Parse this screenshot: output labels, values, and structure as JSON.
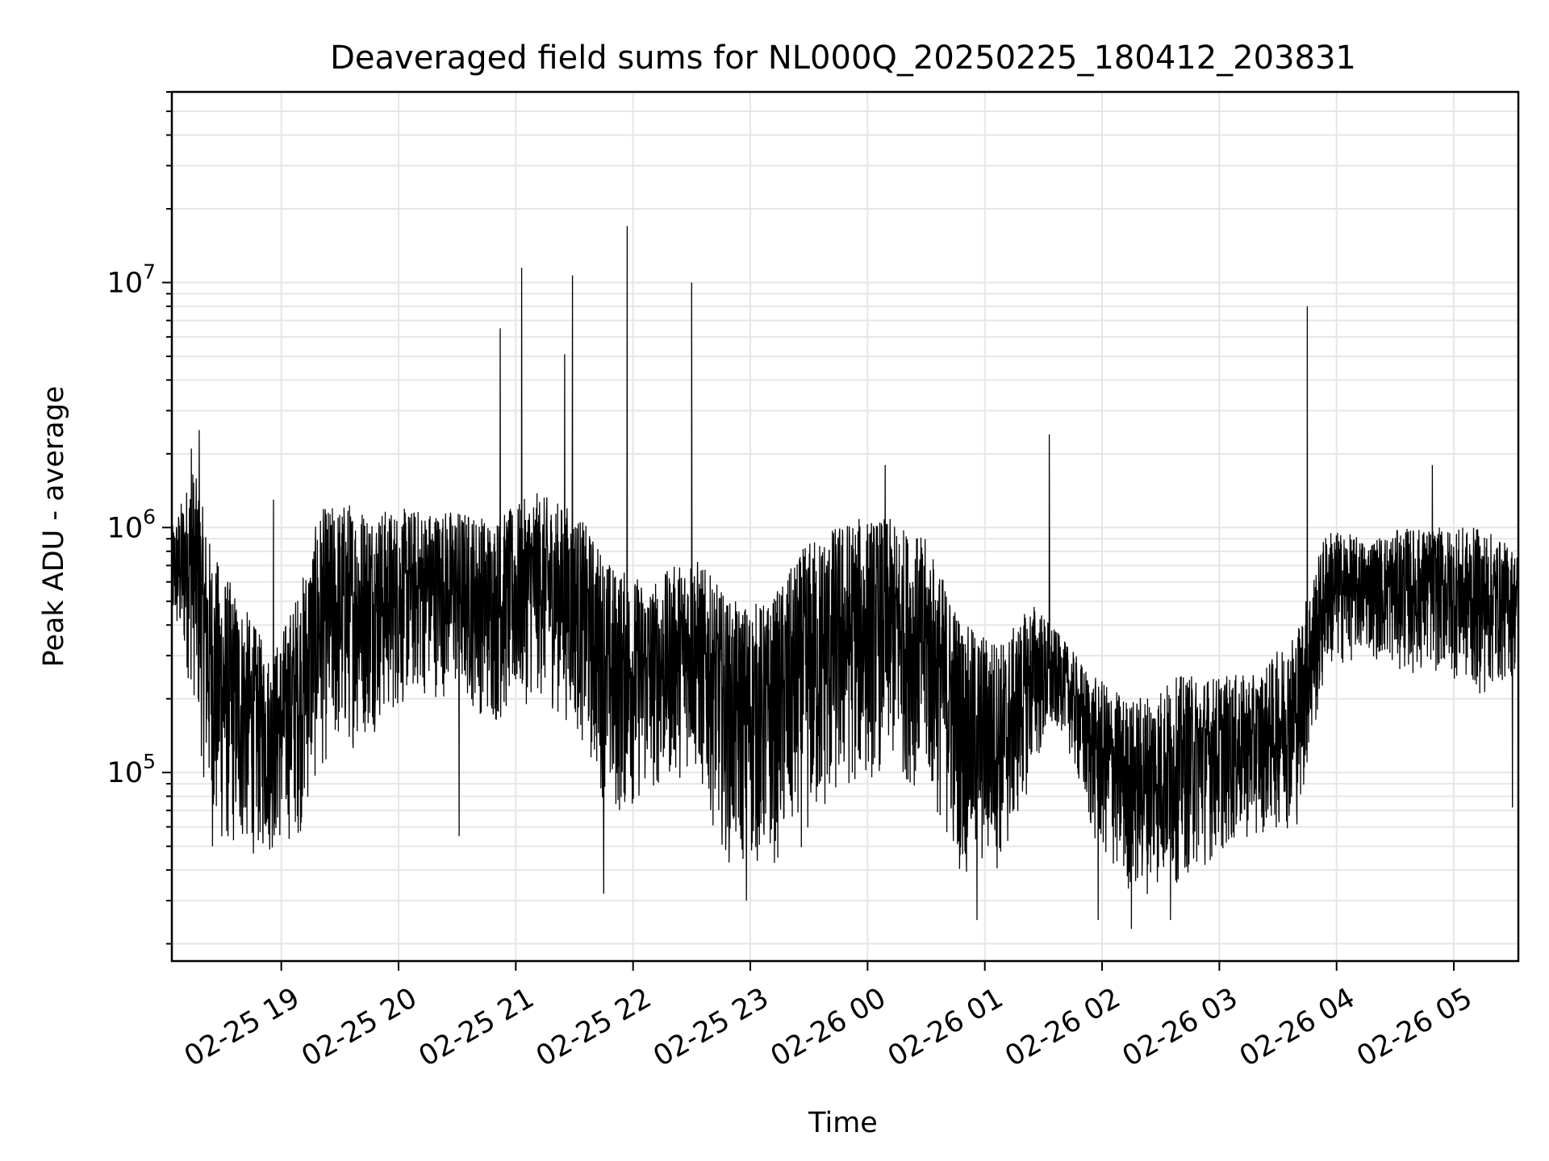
{
  "chart_data": {
    "type": "line",
    "title": "Deaveraged field sums for NL000Q_20250225_180412_203831",
    "xlabel": "Time",
    "ylabel": "Peak ADU - average",
    "yscale": "log",
    "grid": true,
    "line_color": "#000000",
    "grid_color": "#e6e6e6",
    "xlim": [
      "2025-02-25 18:04",
      "2025-02-26 05:33"
    ],
    "ylim": [
      17000,
      60000000
    ],
    "x_ticks": [
      {
        "t": "2025-02-25 19:00",
        "label": "02-25 19"
      },
      {
        "t": "2025-02-25 20:00",
        "label": "02-25 20"
      },
      {
        "t": "2025-02-25 21:00",
        "label": "02-25 21"
      },
      {
        "t": "2025-02-25 22:00",
        "label": "02-25 22"
      },
      {
        "t": "2025-02-25 23:00",
        "label": "02-25 23"
      },
      {
        "t": "2025-02-26 00:00",
        "label": "02-26 00"
      },
      {
        "t": "2025-02-26 01:00",
        "label": "02-26 01"
      },
      {
        "t": "2025-02-26 02:00",
        "label": "02-26 02"
      },
      {
        "t": "2025-02-26 03:00",
        "label": "02-26 03"
      },
      {
        "t": "2025-02-26 04:00",
        "label": "02-26 04"
      },
      {
        "t": "2025-02-26 05:00",
        "label": "02-26 05"
      }
    ],
    "y_ticks": [
      {
        "value": 100000,
        "base": "10",
        "exp": "5"
      },
      {
        "value": 1000000,
        "base": "10",
        "exp": "6"
      },
      {
        "value": 10000000,
        "base": "10",
        "exp": "7"
      }
    ],
    "envelope": [
      {
        "t": "2025-02-25 18:04",
        "low": 380000,
        "high": 1000000
      },
      {
        "t": "2025-02-25 18:15",
        "low": 200000,
        "high": 1800000
      },
      {
        "t": "2025-02-25 18:25",
        "low": 45000,
        "high": 800000
      },
      {
        "t": "2025-02-25 18:40",
        "low": 45000,
        "high": 500000
      },
      {
        "t": "2025-02-25 18:55",
        "low": 45000,
        "high": 300000
      },
      {
        "t": "2025-02-25 19:10",
        "low": 55000,
        "high": 600000
      },
      {
        "t": "2025-02-25 19:20",
        "low": 100000,
        "high": 1200000
      },
      {
        "t": "2025-02-25 19:35",
        "low": 120000,
        "high": 1300000
      },
      {
        "t": "2025-02-25 19:50",
        "low": 150000,
        "high": 1200000
      },
      {
        "t": "2025-02-25 20:10",
        "low": 200000,
        "high": 1200000
      },
      {
        "t": "2025-02-25 20:30",
        "low": 200000,
        "high": 1200000
      },
      {
        "t": "2025-02-25 20:50",
        "low": 150000,
        "high": 1100000
      },
      {
        "t": "2025-02-25 21:10",
        "low": 200000,
        "high": 1400000
      },
      {
        "t": "2025-02-25 21:30",
        "low": 150000,
        "high": 1200000
      },
      {
        "t": "2025-02-25 21:50",
        "low": 60000,
        "high": 700000
      },
      {
        "t": "2025-02-25 22:10",
        "low": 80000,
        "high": 600000
      },
      {
        "t": "2025-02-25 22:30",
        "low": 100000,
        "high": 800000
      },
      {
        "t": "2025-02-25 22:50",
        "low": 40000,
        "high": 500000
      },
      {
        "t": "2025-02-25 23:10",
        "low": 40000,
        "high": 500000
      },
      {
        "t": "2025-02-25 23:30",
        "low": 50000,
        "high": 900000
      },
      {
        "t": "2025-02-25 23:50",
        "low": 80000,
        "high": 1100000
      },
      {
        "t": "2025-02-26 00:10",
        "low": 100000,
        "high": 1100000
      },
      {
        "t": "2025-02-26 00:30",
        "low": 80000,
        "high": 900000
      },
      {
        "t": "2025-02-26 00:50",
        "low": 35000,
        "high": 400000
      },
      {
        "t": "2025-02-26 01:10",
        "low": 40000,
        "high": 350000
      },
      {
        "t": "2025-02-26 01:25",
        "low": 100000,
        "high": 500000
      },
      {
        "t": "2025-02-26 01:40",
        "low": 150000,
        "high": 350000
      },
      {
        "t": "2025-02-26 01:55",
        "low": 50000,
        "high": 250000
      },
      {
        "t": "2025-02-26 02:15",
        "low": 30000,
        "high": 200000
      },
      {
        "t": "2025-02-26 02:40",
        "low": 35000,
        "high": 250000
      },
      {
        "t": "2025-02-26 03:00",
        "low": 45000,
        "high": 250000
      },
      {
        "t": "2025-02-26 03:20",
        "low": 55000,
        "high": 250000
      },
      {
        "t": "2025-02-26 03:40",
        "low": 60000,
        "high": 400000
      },
      {
        "t": "2025-02-26 03:55",
        "low": 250000,
        "high": 1000000
      },
      {
        "t": "2025-02-26 04:15",
        "low": 300000,
        "high": 900000
      },
      {
        "t": "2025-02-26 04:35",
        "low": 250000,
        "high": 1000000
      },
      {
        "t": "2025-02-26 04:55",
        "low": 250000,
        "high": 1000000
      },
      {
        "t": "2025-02-26 05:15",
        "low": 200000,
        "high": 1000000
      },
      {
        "t": "2025-02-26 05:33",
        "low": 250000,
        "high": 800000
      }
    ],
    "peaks": [
      {
        "t": "2025-02-25 18:14",
        "value": 2100000
      },
      {
        "t": "2025-02-25 18:18",
        "value": 2500000
      },
      {
        "t": "2025-02-25 18:56",
        "value": 1300000
      },
      {
        "t": "2025-02-25 20:52",
        "value": 6500000
      },
      {
        "t": "2025-02-25 21:03",
        "value": 11500000
      },
      {
        "t": "2025-02-25 21:25",
        "value": 5100000
      },
      {
        "t": "2025-02-25 21:29",
        "value": 10700000
      },
      {
        "t": "2025-02-25 21:57",
        "value": 17000000
      },
      {
        "t": "2025-02-25 22:30",
        "value": 10000000
      },
      {
        "t": "2025-02-26 00:09",
        "value": 1800000
      },
      {
        "t": "2025-02-26 01:33",
        "value": 2400000
      },
      {
        "t": "2025-02-26 03:45",
        "value": 8000000
      },
      {
        "t": "2025-02-26 04:49",
        "value": 1800000
      }
    ],
    "dips": [
      {
        "t": "2025-02-25 20:31",
        "value": 55000
      },
      {
        "t": "2025-02-25 21:45",
        "value": 32000
      },
      {
        "t": "2025-02-25 22:58",
        "value": 30000
      },
      {
        "t": "2025-02-26 00:56",
        "value": 25000
      },
      {
        "t": "2025-02-26 01:58",
        "value": 25000
      },
      {
        "t": "2025-02-26 02:15",
        "value": 23000
      },
      {
        "t": "2025-02-26 02:35",
        "value": 25000
      },
      {
        "t": "2025-02-26 05:30",
        "value": 72000
      }
    ]
  }
}
